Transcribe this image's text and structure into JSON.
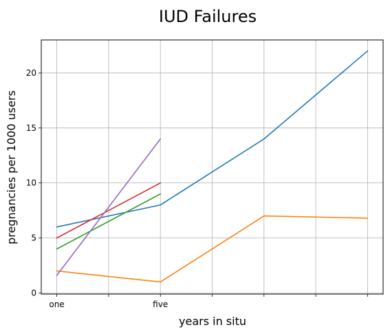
{
  "chart_data": {
    "type": "line",
    "title": "IUD Failures",
    "xlabel": "years in situ",
    "ylabel": "pregnancies per 1000 users",
    "x_ticks": [
      {
        "x": 1,
        "label": "one"
      },
      {
        "x": 2,
        "label": ""
      },
      {
        "x": 3,
        "label": "five"
      },
      {
        "x": 4,
        "label": ""
      },
      {
        "x": 5,
        "label": ""
      },
      {
        "x": 6,
        "label": ""
      },
      {
        "x": 7,
        "label": ""
      }
    ],
    "y_ticks": [
      0,
      5,
      10,
      15,
      20
    ],
    "xlim": [
      0.7,
      7.3
    ],
    "ylim": [
      -0.1,
      23
    ],
    "grid": true,
    "series": [
      {
        "color": "#1f77b4",
        "x": [
          1,
          3,
          5,
          7
        ],
        "y": [
          6,
          8,
          14,
          22
        ]
      },
      {
        "color": "#ff7f0e",
        "x": [
          1,
          3,
          5,
          7
        ],
        "y": [
          2,
          1,
          7,
          6.8
        ]
      },
      {
        "color": "#2ca02c",
        "x": [
          1,
          3
        ],
        "y": [
          4,
          9
        ]
      },
      {
        "color": "#d62728",
        "x": [
          1,
          3
        ],
        "y": [
          5,
          10
        ]
      },
      {
        "color": "#9467bd",
        "x": [
          1,
          3
        ],
        "y": [
          1.6,
          14
        ]
      }
    ]
  }
}
